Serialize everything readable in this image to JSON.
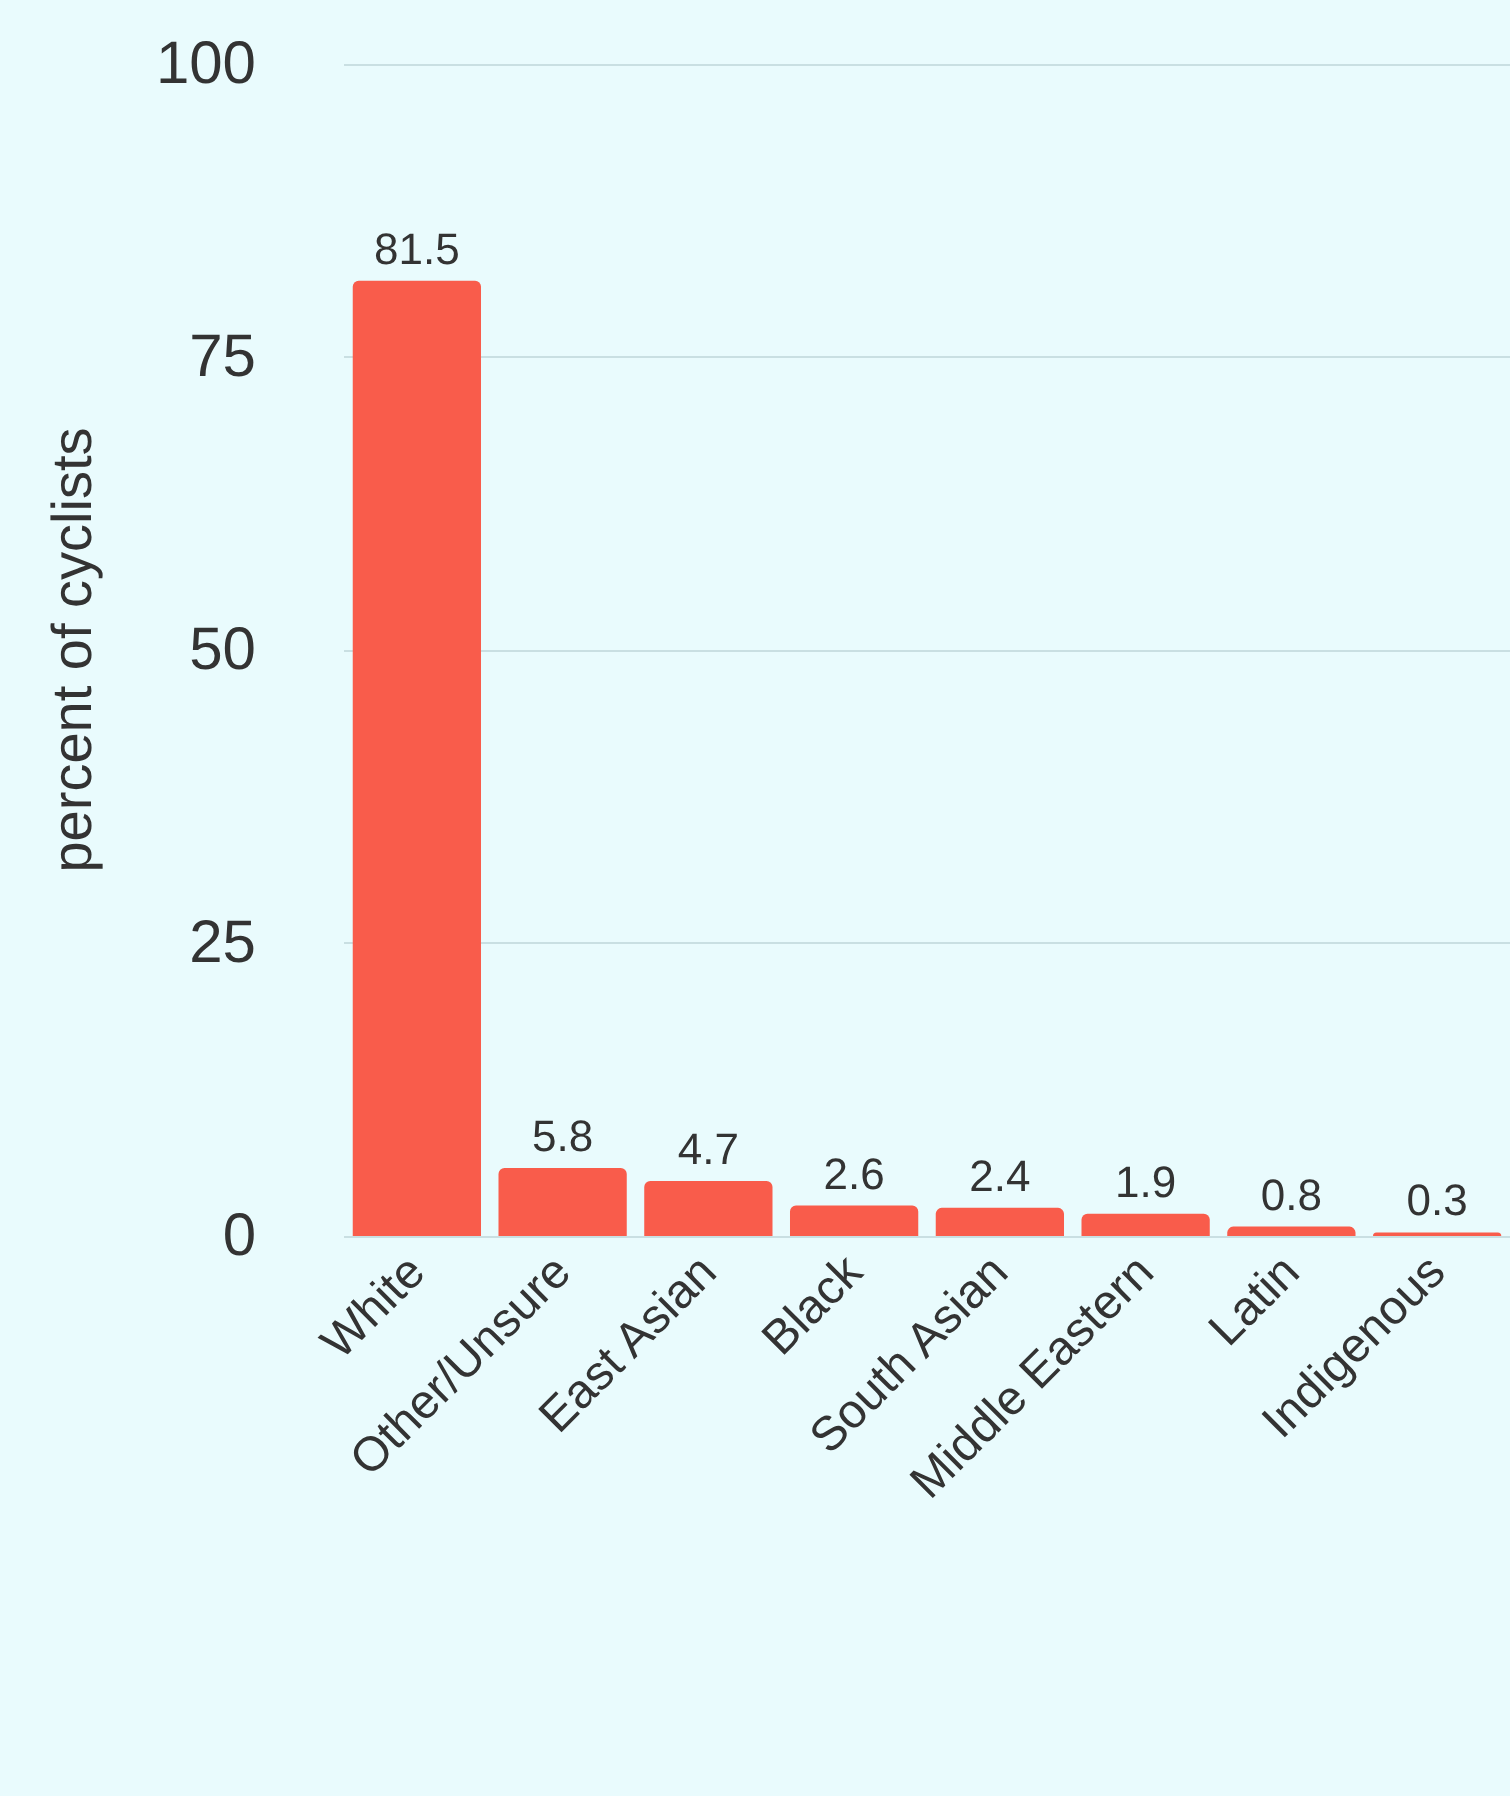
{
  "chart_data": {
    "type": "bar",
    "ylabel": "percent of cyclists",
    "categories": [
      "White",
      "Other/Unsure",
      "East Asian",
      "Black",
      "South Asian",
      "Middle Eastern",
      "Latin",
      "Indigenous"
    ],
    "values": [
      81.5,
      5.8,
      4.7,
      2.6,
      2.4,
      1.9,
      0.8,
      0.3
    ],
    "color": "#f95c4b",
    "ylim": [
      0,
      100
    ],
    "yticks": [
      0,
      25,
      50,
      75,
      100
    ],
    "grid": "y",
    "data_labels": true
  }
}
